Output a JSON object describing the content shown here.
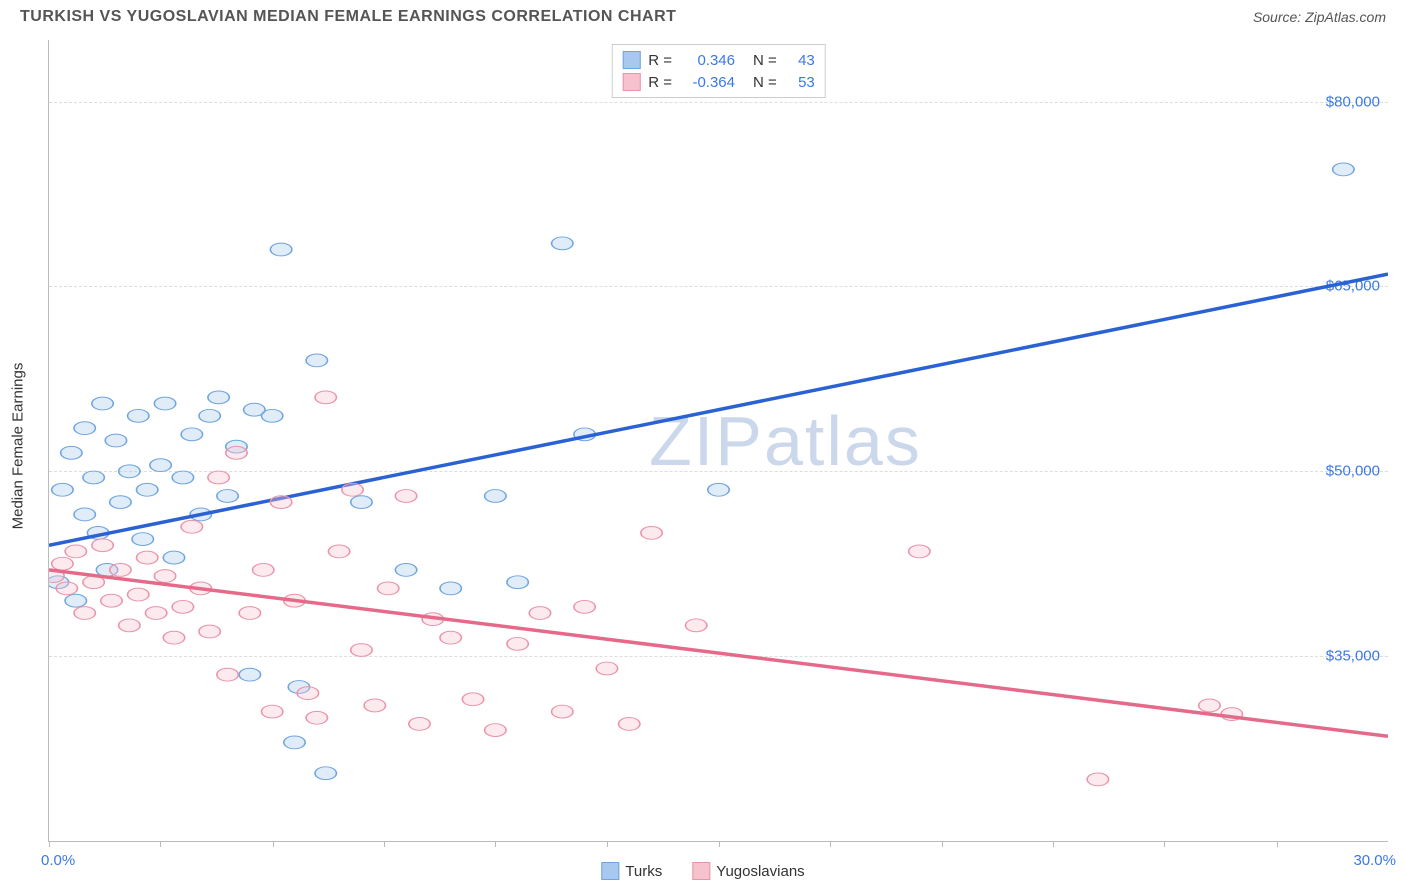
{
  "header": {
    "title": "TURKISH VS YUGOSLAVIAN MEDIAN FEMALE EARNINGS CORRELATION CHART",
    "source": "Source: ZipAtlas.com"
  },
  "watermark": {
    "bold_part": "ZIP",
    "light_part": "atlas"
  },
  "chart": {
    "type": "scatter",
    "y_axis_title": "Median Female Earnings",
    "xlim": [
      0,
      30
    ],
    "ylim": [
      20000,
      85000
    ],
    "xlabel_min": "0.0%",
    "xlabel_max": "30.0%",
    "xtick_positions_pct": [
      0,
      8.3,
      16.7,
      25.0,
      33.3,
      41.7,
      50.0,
      58.3,
      66.7,
      75.0,
      83.3,
      91.7
    ],
    "yticks": [
      {
        "value": 35000,
        "label": "$35,000"
      },
      {
        "value": 50000,
        "label": "$50,000"
      },
      {
        "value": 65000,
        "label": "$65,000"
      },
      {
        "value": 80000,
        "label": "$80,000"
      }
    ],
    "grid_color": "#dddddd",
    "background_color": "#ffffff",
    "marker_radius": 8,
    "marker_fill_opacity": 0.35,
    "marker_stroke_width": 1.2,
    "series": [
      {
        "name": "Turks",
        "color_fill": "#a9c8ef",
        "color_stroke": "#6fa5e0",
        "trend_color": "#2a62d4",
        "trend_width": 2.5,
        "trend_start": {
          "x": 0,
          "y": 44000
        },
        "trend_end": {
          "x": 30,
          "y": 66000
        },
        "points": [
          {
            "x": 0.2,
            "y": 41000
          },
          {
            "x": 0.3,
            "y": 48500
          },
          {
            "x": 0.5,
            "y": 51500
          },
          {
            "x": 0.6,
            "y": 39500
          },
          {
            "x": 0.8,
            "y": 46500
          },
          {
            "x": 0.8,
            "y": 53500
          },
          {
            "x": 1.0,
            "y": 49500
          },
          {
            "x": 1.1,
            "y": 45000
          },
          {
            "x": 1.2,
            "y": 55500
          },
          {
            "x": 1.3,
            "y": 42000
          },
          {
            "x": 1.5,
            "y": 52500
          },
          {
            "x": 1.6,
            "y": 47500
          },
          {
            "x": 1.8,
            "y": 50000
          },
          {
            "x": 2.0,
            "y": 54500
          },
          {
            "x": 2.1,
            "y": 44500
          },
          {
            "x": 2.2,
            "y": 48500
          },
          {
            "x": 2.5,
            "y": 50500
          },
          {
            "x": 2.6,
            "y": 55500
          },
          {
            "x": 2.8,
            "y": 43000
          },
          {
            "x": 3.0,
            "y": 49500
          },
          {
            "x": 3.2,
            "y": 53000
          },
          {
            "x": 3.4,
            "y": 46500
          },
          {
            "x": 3.6,
            "y": 54500
          },
          {
            "x": 3.8,
            "y": 56000
          },
          {
            "x": 4.0,
            "y": 48000
          },
          {
            "x": 4.2,
            "y": 52000
          },
          {
            "x": 4.5,
            "y": 33500
          },
          {
            "x": 4.6,
            "y": 55000
          },
          {
            "x": 5.0,
            "y": 54500
          },
          {
            "x": 5.2,
            "y": 68000
          },
          {
            "x": 5.5,
            "y": 28000
          },
          {
            "x": 5.6,
            "y": 32500
          },
          {
            "x": 6.0,
            "y": 59000
          },
          {
            "x": 6.2,
            "y": 25500
          },
          {
            "x": 7.0,
            "y": 47500
          },
          {
            "x": 8.0,
            "y": 42000
          },
          {
            "x": 9.0,
            "y": 40500
          },
          {
            "x": 10.0,
            "y": 48000
          },
          {
            "x": 10.5,
            "y": 41000
          },
          {
            "x": 11.5,
            "y": 68500
          },
          {
            "x": 12.0,
            "y": 53000
          },
          {
            "x": 15.0,
            "y": 48500
          },
          {
            "x": 29.0,
            "y": 74500
          }
        ]
      },
      {
        "name": "Yugoslavians",
        "color_fill": "#f5c2cd",
        "color_stroke": "#ea94a9",
        "trend_color": "#e56a8a",
        "trend_width": 2.5,
        "trend_start": {
          "x": 0,
          "y": 42000
        },
        "trend_end": {
          "x": 30,
          "y": 28500
        },
        "points": [
          {
            "x": 0.1,
            "y": 41500
          },
          {
            "x": 0.3,
            "y": 42500
          },
          {
            "x": 0.4,
            "y": 40500
          },
          {
            "x": 0.6,
            "y": 43500
          },
          {
            "x": 0.8,
            "y": 38500
          },
          {
            "x": 1.0,
            "y": 41000
          },
          {
            "x": 1.2,
            "y": 44000
          },
          {
            "x": 1.4,
            "y": 39500
          },
          {
            "x": 1.6,
            "y": 42000
          },
          {
            "x": 1.8,
            "y": 37500
          },
          {
            "x": 2.0,
            "y": 40000
          },
          {
            "x": 2.2,
            "y": 43000
          },
          {
            "x": 2.4,
            "y": 38500
          },
          {
            "x": 2.6,
            "y": 41500
          },
          {
            "x": 2.8,
            "y": 36500
          },
          {
            "x": 3.0,
            "y": 39000
          },
          {
            "x": 3.2,
            "y": 45500
          },
          {
            "x": 3.4,
            "y": 40500
          },
          {
            "x": 3.6,
            "y": 37000
          },
          {
            "x": 3.8,
            "y": 49500
          },
          {
            "x": 4.0,
            "y": 33500
          },
          {
            "x": 4.2,
            "y": 51500
          },
          {
            "x": 4.5,
            "y": 38500
          },
          {
            "x": 4.8,
            "y": 42000
          },
          {
            "x": 5.0,
            "y": 30500
          },
          {
            "x": 5.2,
            "y": 47500
          },
          {
            "x": 5.5,
            "y": 39500
          },
          {
            "x": 5.8,
            "y": 32000
          },
          {
            "x": 6.0,
            "y": 30000
          },
          {
            "x": 6.2,
            "y": 56000
          },
          {
            "x": 6.5,
            "y": 43500
          },
          {
            "x": 6.8,
            "y": 48500
          },
          {
            "x": 7.0,
            "y": 35500
          },
          {
            "x": 7.3,
            "y": 31000
          },
          {
            "x": 7.6,
            "y": 40500
          },
          {
            "x": 8.0,
            "y": 48000
          },
          {
            "x": 8.3,
            "y": 29500
          },
          {
            "x": 8.6,
            "y": 38000
          },
          {
            "x": 9.0,
            "y": 36500
          },
          {
            "x": 9.5,
            "y": 31500
          },
          {
            "x": 10.0,
            "y": 29000
          },
          {
            "x": 10.5,
            "y": 36000
          },
          {
            "x": 11.0,
            "y": 38500
          },
          {
            "x": 11.5,
            "y": 30500
          },
          {
            "x": 12.0,
            "y": 39000
          },
          {
            "x": 12.5,
            "y": 34000
          },
          {
            "x": 13.0,
            "y": 29500
          },
          {
            "x": 13.5,
            "y": 45000
          },
          {
            "x": 14.5,
            "y": 37500
          },
          {
            "x": 19.5,
            "y": 43500
          },
          {
            "x": 23.5,
            "y": 25000
          },
          {
            "x": 26.0,
            "y": 31000
          },
          {
            "x": 26.5,
            "y": 30300
          }
        ]
      }
    ]
  },
  "corr_legend": {
    "rows": [
      {
        "swatch_fill": "#a9c8ef",
        "swatch_stroke": "#6fa5e0",
        "r_label": "R =",
        "r_value": "0.346",
        "n_label": "N =",
        "n_value": "43"
      },
      {
        "swatch_fill": "#f5c2cd",
        "swatch_stroke": "#ea94a9",
        "r_label": "R =",
        "r_value": "-0.364",
        "n_label": "N =",
        "n_value": "53"
      }
    ]
  },
  "bottom_legend": {
    "items": [
      {
        "swatch_fill": "#a9c8ef",
        "swatch_stroke": "#6fa5e0",
        "label": "Turks"
      },
      {
        "swatch_fill": "#f5c2cd",
        "swatch_stroke": "#ea94a9",
        "label": "Yugoslavians"
      }
    ]
  }
}
